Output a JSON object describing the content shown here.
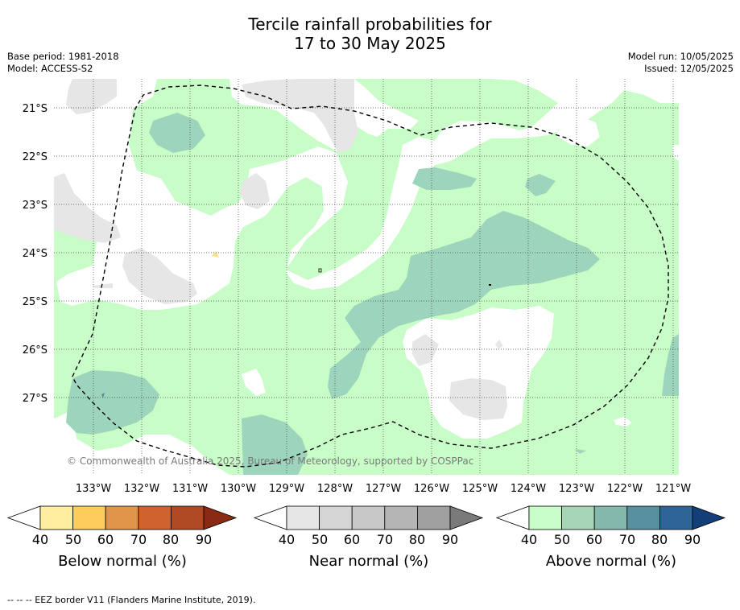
{
  "title_line1": "Tercile rainfall probabilities for",
  "title_line2": "17 to 30 May 2025",
  "base_period": "Base period: 1981-2018",
  "model": "Model: ACCESS-S2",
  "model_run": "Model run: 10/05/2025",
  "issued": "Issued: 12/05/2025",
  "copyright": "© Commonwealth of Australia 2025, Bureau of Meteorology, supported by COSPPac",
  "lat_labels": [
    "21°S",
    "22°S",
    "23°S",
    "24°S",
    "25°S",
    "26°S",
    "27°S"
  ],
  "lon_labels": [
    "133°W",
    "132°W",
    "131°W",
    "130°W",
    "129°W",
    "128°W",
    "127°W",
    "126°W",
    "125°W",
    "124°W",
    "123°W",
    "122°W",
    "121°W"
  ],
  "colorbars": [
    {
      "title": "Below normal (%)",
      "ticks": [
        "40",
        "50",
        "60",
        "70",
        "80",
        "90"
      ],
      "colors": [
        "#ffffff",
        "#ffeda0",
        "#fecc5c",
        "#e1954a",
        "#d0622f",
        "#b04a24",
        "#8b2a12"
      ]
    },
    {
      "title": "Near normal (%)",
      "ticks": [
        "40",
        "50",
        "60",
        "70",
        "80",
        "90"
      ],
      "colors": [
        "#ffffff",
        "#e6e6e6",
        "#d5d5d5",
        "#c8c8c8",
        "#b5b5b5",
        "#a0a0a0",
        "#7a7a7a"
      ]
    },
    {
      "title": "Above normal (%)",
      "ticks": [
        "40",
        "50",
        "60",
        "70",
        "80",
        "90"
      ],
      "colors": [
        "#ffffff",
        "#c8fdc8",
        "#a6d5b5",
        "#84b8ad",
        "#5890a0",
        "#2f6498",
        "#123f78"
      ]
    }
  ],
  "footer": "--  --  -- EEZ border V11 (Flanders Marine Institute, 2019)."
}
